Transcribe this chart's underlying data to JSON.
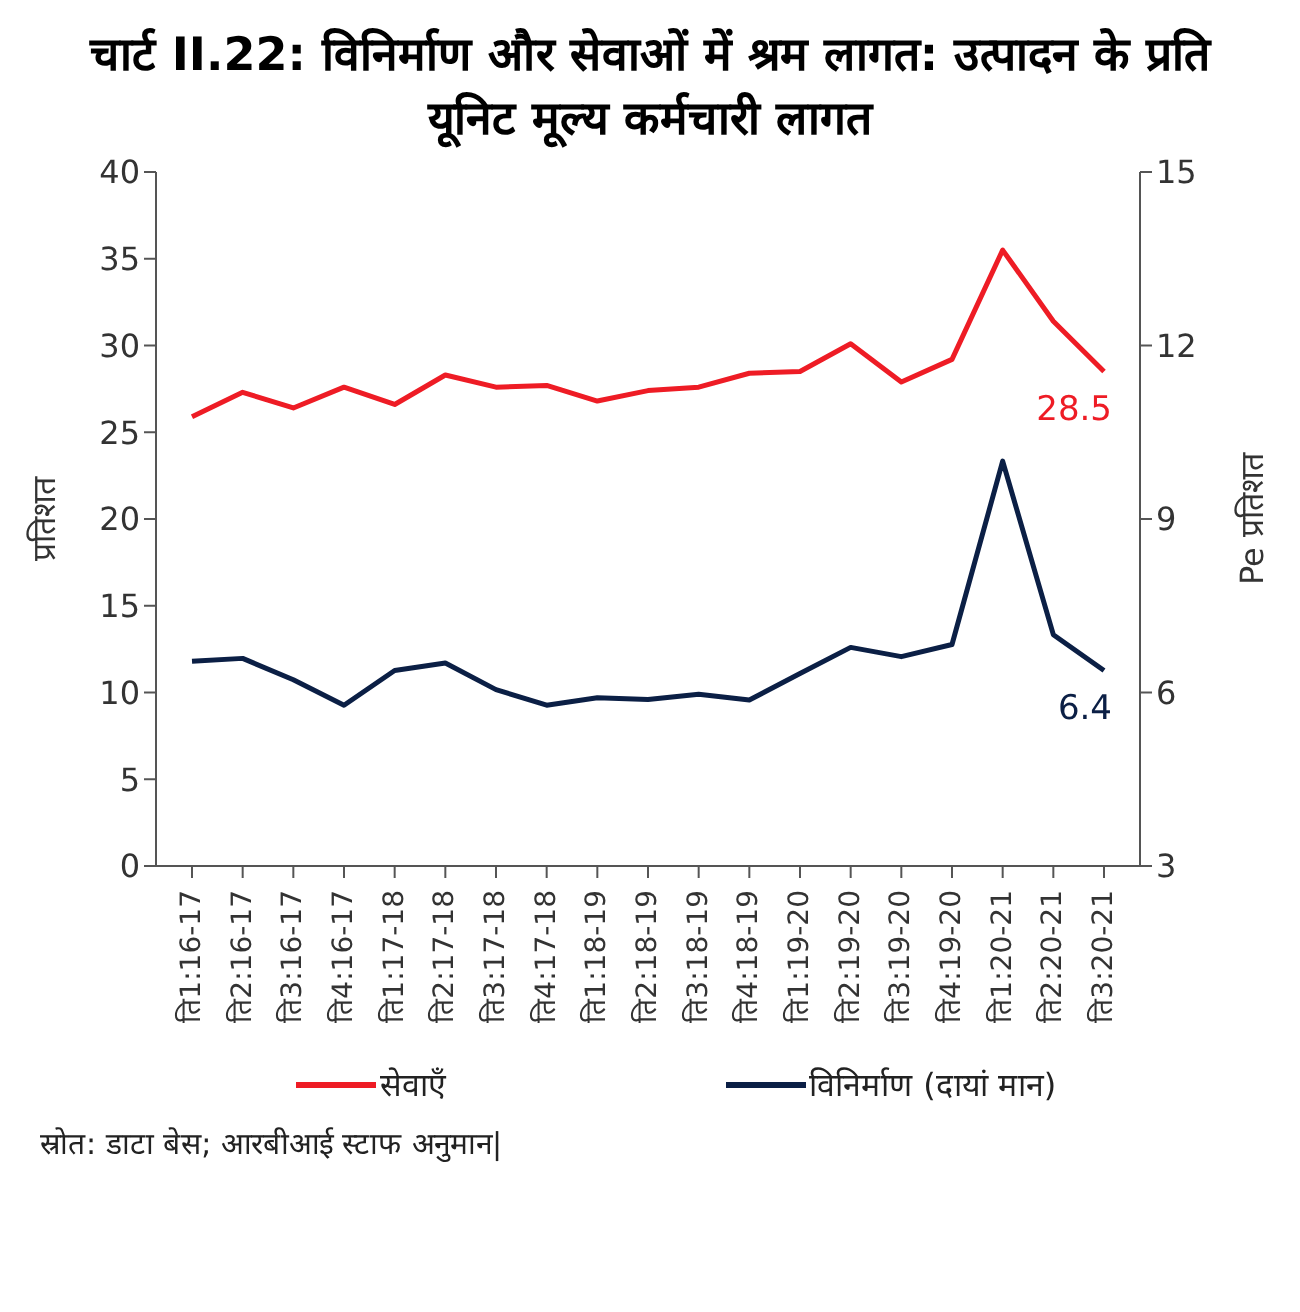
{
  "chart_data": {
    "type": "line",
    "title": "चार्ट II.22: विनिर्माण और सेवाओं में श्रम लागत: उत्पादन के प्रति यूनिट मूल्य कर्मचारी लागत",
    "ylabel": "प्रतिशत",
    "y2label": "Pe प्रतिशत",
    "categories": [
      "ति1:16-17",
      "ति2:16-17",
      "ति3:16-17",
      "ति4:16-17",
      "ति1:17-18",
      "ति2:17-18",
      "ति3:17-18",
      "ति4:17-18",
      "ति1:18-19",
      "ति2:18-19",
      "ति3:18-19",
      "ति4:18-19",
      "ति1:19-20",
      "ति2:19-20",
      "ति3:19-20",
      "ति4:19-20",
      "ति1:20-21",
      "ति2:20-21",
      "ति3:20-21"
    ],
    "series": [
      {
        "name": "सेवाएँ",
        "color": "#ee1c25",
        "values": [
          25.9,
          27.3,
          26.4,
          27.6,
          26.6,
          28.3,
          27.6,
          27.7,
          26.8,
          27.4,
          27.6,
          28.4,
          28.5,
          30.1,
          27.9,
          29.2,
          35.5,
          31.4,
          28.5
        ],
        "value_labels": [
          null,
          null,
          null,
          null,
          null,
          null,
          null,
          null,
          null,
          null,
          null,
          null,
          null,
          null,
          null,
          null,
          null,
          null,
          "28.5"
        ]
      },
      {
        "name": "विनिर्माण (दायां मान)",
        "color": "#0b1f45",
        "axis": "y2",
        "values": [
          6.54,
          6.59,
          6.22,
          5.78,
          6.38,
          6.51,
          6.05,
          5.78,
          5.91,
          5.88,
          5.97,
          5.87,
          6.33,
          6.78,
          6.62,
          6.83,
          10.0,
          7.0,
          6.38
        ],
        "value_labels": [
          null,
          null,
          null,
          null,
          null,
          null,
          null,
          null,
          null,
          null,
          null,
          null,
          null,
          null,
          null,
          null,
          null,
          null,
          "6.4"
        ]
      }
    ],
    "ylim": [
      0,
      40
    ],
    "yticks": [
      0,
      5,
      10,
      15,
      20,
      25,
      30,
      35,
      40
    ],
    "y2lim": [
      3,
      15
    ],
    "y2ticks": [
      3,
      6,
      9,
      12,
      15
    ],
    "grid": false,
    "legend": "bottom",
    "marker": "none",
    "line_style": "solid",
    "annotations": [
      "स्रोत: डाटा बेस; आरबीआई स्टाफ अनुमान|"
    ]
  }
}
